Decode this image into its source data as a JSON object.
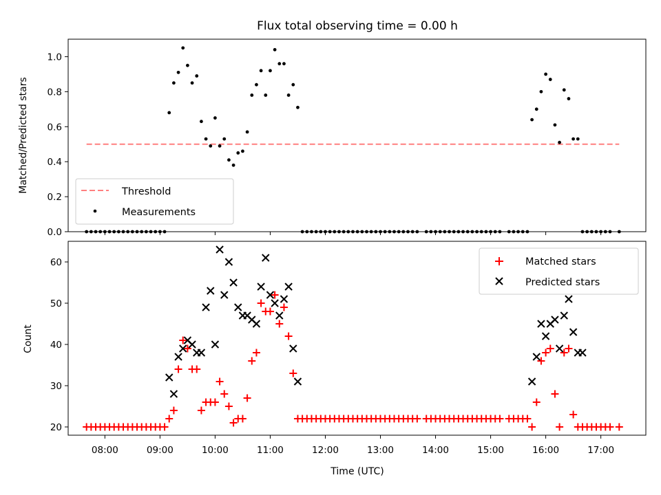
{
  "chart_data": [
    {
      "type": "scatter",
      "title": "Flux total observing time = 0.00 h",
      "ylabel": "Matched/Predicted stars",
      "xlabel": "",
      "xlim": [
        "07:20",
        "17:49"
      ],
      "ylim": [
        0,
        1.1
      ],
      "yticks": [
        "0.0",
        "0.2",
        "0.4",
        "0.6",
        "0.8",
        "1.0"
      ],
      "grid": false,
      "legend_position": "lower-left",
      "colors": {
        "threshold": "#ff7f7f",
        "measurements": "#000000"
      },
      "threshold": {
        "name": "Threshold",
        "value": 0.5,
        "x_range": [
          "07:40",
          "17:20"
        ]
      },
      "series": [
        {
          "name": "Measurements",
          "x": [
            "07:40",
            "07:45",
            "07:50",
            "07:55",
            "08:00",
            "08:05",
            "08:10",
            "08:15",
            "08:20",
            "08:25",
            "08:30",
            "08:35",
            "08:40",
            "08:45",
            "08:50",
            "08:55",
            "09:00",
            "09:05",
            "09:10",
            "09:15",
            "09:20",
            "09:25",
            "09:30",
            "09:35",
            "09:40",
            "09:45",
            "09:50",
            "09:55",
            "10:00",
            "10:05",
            "10:10",
            "10:15",
            "10:20",
            "10:25",
            "10:30",
            "10:35",
            "10:40",
            "10:45",
            "10:50",
            "10:55",
            "11:00",
            "11:05",
            "11:10",
            "11:15",
            "11:20",
            "11:25",
            "11:30",
            "11:35",
            "11:40",
            "11:45",
            "11:50",
            "11:55",
            "12:00",
            "12:05",
            "12:10",
            "12:15",
            "12:20",
            "12:25",
            "12:30",
            "12:35",
            "12:40",
            "12:45",
            "12:50",
            "12:55",
            "13:00",
            "13:05",
            "13:10",
            "13:15",
            "13:20",
            "13:25",
            "13:30",
            "13:35",
            "13:40",
            "13:50",
            "13:55",
            "14:00",
            "14:05",
            "14:10",
            "14:15",
            "14:20",
            "14:25",
            "14:30",
            "14:35",
            "14:40",
            "14:45",
            "14:50",
            "14:55",
            "15:00",
            "15:05",
            "15:10",
            "15:20",
            "15:25",
            "15:30",
            "15:35",
            "15:40",
            "15:45",
            "15:50",
            "15:55",
            "16:00",
            "16:05",
            "16:10",
            "16:15",
            "16:20",
            "16:25",
            "16:30",
            "16:35",
            "16:40",
            "16:45",
            "16:50",
            "16:55",
            "17:00",
            "17:05",
            "17:10",
            "17:20"
          ],
          "y": [
            0,
            0,
            0,
            0,
            0,
            0,
            0,
            0,
            0,
            0,
            0,
            0,
            0,
            0,
            0,
            0,
            0,
            0,
            0.68,
            0.85,
            0.91,
            1.05,
            0.95,
            0.85,
            0.89,
            0.63,
            0.53,
            0.49,
            0.65,
            0.49,
            0.53,
            0.41,
            0.38,
            0.45,
            0.46,
            0.57,
            0.78,
            0.84,
            0.92,
            0.78,
            0.92,
            1.04,
            0.96,
            0.96,
            0.78,
            0.84,
            0.71,
            0,
            0,
            0,
            0,
            0,
            0,
            0,
            0,
            0,
            0,
            0,
            0,
            0,
            0,
            0,
            0,
            0,
            0,
            0,
            0,
            0,
            0,
            0,
            0,
            0,
            0,
            0,
            0,
            0,
            0,
            0,
            0,
            0,
            0,
            0,
            0,
            0,
            0,
            0,
            0,
            0,
            0,
            0,
            0,
            0,
            0,
            0,
            0,
            0.64,
            0.7,
            0.8,
            0.9,
            0.87,
            0.61,
            0.51,
            0.81,
            0.76,
            0.53,
            0.53,
            0,
            0,
            0,
            0,
            0,
            0,
            0,
            0
          ]
        }
      ]
    },
    {
      "type": "scatter",
      "title": "",
      "ylabel": "Count",
      "xlabel": "Time (UTC)",
      "xlim": [
        "07:20",
        "17:49"
      ],
      "ylim": [
        18,
        65
      ],
      "yticks": [
        "20",
        "30",
        "40",
        "50",
        "60"
      ],
      "xticks": [
        "08:00",
        "09:00",
        "10:00",
        "11:00",
        "12:00",
        "13:00",
        "14:00",
        "15:00",
        "16:00",
        "17:00"
      ],
      "grid": false,
      "legend_position": "upper-right",
      "colors": {
        "matched": "#ff0000",
        "predicted": "#000000"
      },
      "series": [
        {
          "name": "Matched stars",
          "marker": "plus",
          "x": [
            "07:40",
            "07:45",
            "07:50",
            "07:55",
            "08:00",
            "08:05",
            "08:10",
            "08:15",
            "08:20",
            "08:25",
            "08:30",
            "08:35",
            "08:40",
            "08:45",
            "08:50",
            "08:55",
            "09:00",
            "09:05",
            "09:10",
            "09:15",
            "09:20",
            "09:25",
            "09:30",
            "09:35",
            "09:40",
            "09:45",
            "09:50",
            "09:55",
            "10:00",
            "10:05",
            "10:10",
            "10:15",
            "10:20",
            "10:25",
            "10:30",
            "10:35",
            "10:40",
            "10:45",
            "10:50",
            "10:55",
            "11:00",
            "11:05",
            "11:10",
            "11:15",
            "11:20",
            "11:25",
            "11:30",
            "11:35",
            "11:40",
            "11:45",
            "11:50",
            "11:55",
            "12:00",
            "12:05",
            "12:10",
            "12:15",
            "12:20",
            "12:25",
            "12:30",
            "12:35",
            "12:40",
            "12:45",
            "12:50",
            "12:55",
            "13:00",
            "13:05",
            "13:10",
            "13:15",
            "13:20",
            "13:25",
            "13:30",
            "13:35",
            "13:40",
            "13:50",
            "13:55",
            "14:00",
            "14:05",
            "14:10",
            "14:15",
            "14:20",
            "14:25",
            "14:30",
            "14:35",
            "14:40",
            "14:45",
            "14:50",
            "14:55",
            "15:00",
            "15:05",
            "15:10",
            "15:20",
            "15:25",
            "15:30",
            "15:35",
            "15:40",
            "15:45",
            "15:50",
            "15:55",
            "16:00",
            "16:05",
            "16:10",
            "16:15",
            "16:20",
            "16:25",
            "16:30",
            "16:35",
            "16:40",
            "16:45",
            "16:50",
            "16:55",
            "17:00",
            "17:05",
            "17:10",
            "17:20"
          ],
          "y": [
            20,
            20,
            20,
            20,
            20,
            20,
            20,
            20,
            20,
            20,
            20,
            20,
            20,
            20,
            20,
            20,
            20,
            20,
            22,
            24,
            34,
            41,
            39,
            34,
            34,
            24,
            26,
            26,
            26,
            31,
            28,
            25,
            21,
            22,
            22,
            27,
            36,
            38,
            50,
            48,
            48,
            52,
            45,
            49,
            42,
            33,
            22,
            22,
            22,
            22,
            22,
            22,
            22,
            22,
            22,
            22,
            22,
            22,
            22,
            22,
            22,
            22,
            22,
            22,
            22,
            22,
            22,
            22,
            22,
            22,
            22,
            22,
            22,
            22,
            22,
            22,
            22,
            22,
            22,
            22,
            22,
            22,
            22,
            22,
            22,
            22,
            22,
            22,
            22,
            22,
            22,
            22,
            22,
            22,
            22,
            20,
            26,
            36,
            38,
            39,
            28,
            20,
            38,
            39,
            23,
            20,
            20,
            20,
            20,
            20,
            20,
            20,
            20,
            20
          ]
        },
        {
          "name": "Predicted stars",
          "marker": "x",
          "x": [
            "09:10",
            "09:15",
            "09:20",
            "09:25",
            "09:30",
            "09:35",
            "09:40",
            "09:45",
            "09:50",
            "09:55",
            "10:00",
            "10:05",
            "10:10",
            "10:15",
            "10:20",
            "10:25",
            "10:30",
            "10:35",
            "10:40",
            "10:45",
            "10:50",
            "10:55",
            "11:00",
            "11:05",
            "11:10",
            "11:15",
            "11:20",
            "11:25",
            "11:30",
            "15:45",
            "15:50",
            "15:55",
            "16:00",
            "16:05",
            "16:10",
            "16:15",
            "16:20",
            "16:25",
            "16:30",
            "16:35",
            "16:40"
          ],
          "y": [
            32,
            28,
            37,
            39,
            41,
            40,
            38,
            38,
            49,
            53,
            40,
            63,
            52,
            60,
            55,
            49,
            47,
            47,
            46,
            45,
            54,
            61,
            52,
            50,
            47,
            51,
            54,
            39,
            31,
            31,
            37,
            45,
            42,
            45,
            46,
            39,
            47,
            51,
            43,
            38,
            38
          ]
        }
      ]
    }
  ]
}
